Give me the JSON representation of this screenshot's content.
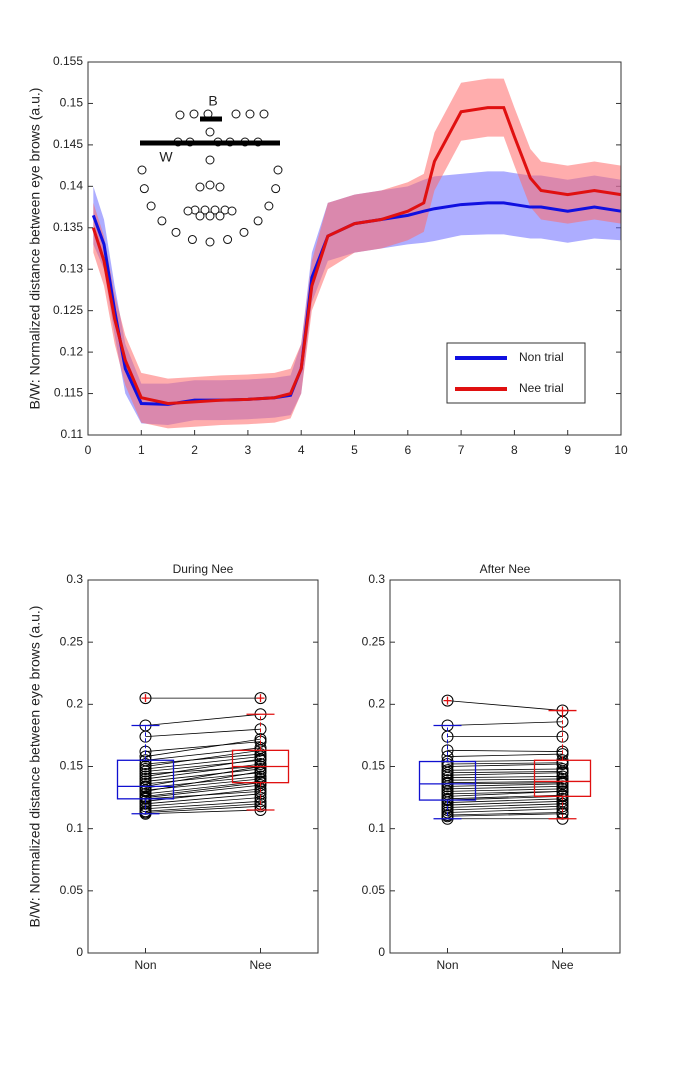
{
  "chart_data": [
    {
      "type": "line",
      "ylabel": "B/W: Normalized distance between eye brows (a.u.)",
      "xlim": [
        0,
        10
      ],
      "xticks": [
        0,
        1,
        2,
        3,
        4,
        5,
        6,
        7,
        8,
        9,
        10
      ],
      "ylim": [
        0.11,
        0.155
      ],
      "yticks": [
        0.11,
        0.115,
        0.12,
        0.125,
        0.13,
        0.135,
        0.14,
        0.145,
        0.15,
        0.155
      ],
      "legend": "lower right",
      "inset_labels": [
        "B",
        "W"
      ],
      "x": [
        0.1,
        0.3,
        0.5,
        0.7,
        1,
        1.5,
        2,
        2.5,
        3,
        3.5,
        3.8,
        4,
        4.2,
        4.5,
        5,
        5.5,
        6,
        6.3,
        6.5,
        7,
        7.5,
        7.8,
        8,
        8.3,
        8.5,
        9,
        9.5,
        10
      ],
      "series": [
        {
          "name": "Non trial",
          "color": "#1010e0",
          "band_color": "#6a6aff",
          "values": [
            0.1365,
            0.133,
            0.125,
            0.118,
            0.1138,
            0.1137,
            0.1142,
            0.1142,
            0.1143,
            0.1145,
            0.1148,
            0.118,
            0.129,
            0.134,
            0.1355,
            0.136,
            0.1365,
            0.137,
            0.1373,
            0.1378,
            0.138,
            0.138,
            0.1378,
            0.1375,
            0.1375,
            0.137,
            0.1375,
            0.137
          ],
          "upper": [
            0.14,
            0.136,
            0.128,
            0.121,
            0.1162,
            0.1162,
            0.1166,
            0.1166,
            0.1167,
            0.1169,
            0.1172,
            0.121,
            0.132,
            0.138,
            0.139,
            0.1395,
            0.14,
            0.1408,
            0.1412,
            0.1415,
            0.1418,
            0.1418,
            0.1416,
            0.1413,
            0.1413,
            0.1408,
            0.1413,
            0.1408
          ],
          "lower": [
            0.133,
            0.13,
            0.122,
            0.115,
            0.1114,
            0.1112,
            0.1118,
            0.1118,
            0.1119,
            0.1121,
            0.1124,
            0.115,
            0.126,
            0.131,
            0.132,
            0.1325,
            0.133,
            0.1332,
            0.1334,
            0.1341,
            0.1342,
            0.1342,
            0.134,
            0.1337,
            0.1337,
            0.1332,
            0.1337,
            0.1335
          ]
        },
        {
          "name": "Nee trial",
          "color": "#e01010",
          "band_color": "#ff6a6a",
          "values": [
            0.135,
            0.131,
            0.124,
            0.119,
            0.1145,
            0.1138,
            0.114,
            0.1142,
            0.1143,
            0.1145,
            0.115,
            0.118,
            0.128,
            0.134,
            0.1355,
            0.136,
            0.137,
            0.138,
            0.143,
            0.149,
            0.1495,
            0.1495,
            0.146,
            0.141,
            0.1395,
            0.139,
            0.1395,
            0.139
          ],
          "upper": [
            0.138,
            0.134,
            0.127,
            0.122,
            0.1175,
            0.1168,
            0.117,
            0.1172,
            0.1173,
            0.1175,
            0.118,
            0.121,
            0.131,
            0.138,
            0.139,
            0.1395,
            0.1405,
            0.1415,
            0.1465,
            0.1525,
            0.153,
            0.153,
            0.1495,
            0.1445,
            0.143,
            0.1425,
            0.143,
            0.1425
          ],
          "lower": [
            0.132,
            0.128,
            0.121,
            0.116,
            0.1115,
            0.1108,
            0.111,
            0.1112,
            0.1113,
            0.1115,
            0.112,
            0.115,
            0.125,
            0.13,
            0.132,
            0.1325,
            0.1335,
            0.1345,
            0.1395,
            0.1455,
            0.146,
            0.146,
            0.1425,
            0.1375,
            0.136,
            0.1355,
            0.136,
            0.1355
          ]
        }
      ]
    },
    {
      "type": "box",
      "title": "During Nee",
      "ylabel": "B/W: Normalized distance between eye brows (a.u.)",
      "categories": [
        "Non",
        "Nee"
      ],
      "colors": [
        "#1010d0",
        "#e01010"
      ],
      "ylim": [
        0,
        0.3
      ],
      "yticks": [
        0,
        0.05,
        0.1,
        0.15,
        0.2,
        0.25,
        0.3
      ],
      "boxes": [
        {
          "whisker_low": 0.112,
          "q1": 0.124,
          "median": 0.134,
          "q3": 0.155,
          "whisker_high": 0.183,
          "outliers": [
            0.205
          ]
        },
        {
          "whisker_low": 0.115,
          "q1": 0.137,
          "median": 0.15,
          "q3": 0.163,
          "whisker_high": 0.192,
          "outliers": [
            0.205
          ]
        }
      ],
      "points": [
        [
          0.205,
          0.183,
          0.174,
          0.162,
          0.158,
          0.155,
          0.152,
          0.15,
          0.148,
          0.146,
          0.144,
          0.142,
          0.14,
          0.138,
          0.136,
          0.134,
          0.133,
          0.131,
          0.13,
          0.128,
          0.126,
          0.125,
          0.124,
          0.122,
          0.12,
          0.118,
          0.116,
          0.114,
          0.112,
          0.113
        ],
        [
          0.205,
          0.192,
          0.18,
          0.17,
          0.172,
          0.165,
          0.16,
          0.163,
          0.158,
          0.155,
          0.15,
          0.156,
          0.152,
          0.148,
          0.145,
          0.15,
          0.142,
          0.14,
          0.146,
          0.138,
          0.137,
          0.135,
          0.13,
          0.132,
          0.128,
          0.125,
          0.122,
          0.12,
          0.115,
          0.118
        ]
      ]
    },
    {
      "type": "box",
      "title": "After Nee",
      "categories": [
        "Non",
        "Nee"
      ],
      "colors": [
        "#1010d0",
        "#e01010"
      ],
      "ylim": [
        0,
        0.3
      ],
      "yticks": [
        0,
        0.05,
        0.1,
        0.15,
        0.2,
        0.25,
        0.3
      ],
      "boxes": [
        {
          "whisker_low": 0.108,
          "q1": 0.123,
          "median": 0.136,
          "q3": 0.154,
          "whisker_high": 0.183,
          "outliers": [
            0.203
          ]
        },
        {
          "whisker_low": 0.108,
          "q1": 0.126,
          "median": 0.138,
          "q3": 0.155,
          "whisker_high": 0.195,
          "outliers": [
            0.195
          ]
        }
      ],
      "points": [
        [
          0.203,
          0.183,
          0.174,
          0.163,
          0.158,
          0.154,
          0.152,
          0.15,
          0.147,
          0.145,
          0.143,
          0.141,
          0.139,
          0.137,
          0.136,
          0.134,
          0.132,
          0.13,
          0.128,
          0.126,
          0.124,
          0.123,
          0.121,
          0.119,
          0.117,
          0.115,
          0.113,
          0.111,
          0.108,
          0.11
        ],
        [
          0.195,
          0.186,
          0.174,
          0.162,
          0.16,
          0.155,
          0.153,
          0.152,
          0.148,
          0.146,
          0.145,
          0.142,
          0.14,
          0.138,
          0.137,
          0.136,
          0.134,
          0.132,
          0.13,
          0.13,
          0.127,
          0.126,
          0.124,
          0.122,
          0.12,
          0.118,
          0.116,
          0.113,
          0.108,
          0.112
        ]
      ]
    }
  ]
}
